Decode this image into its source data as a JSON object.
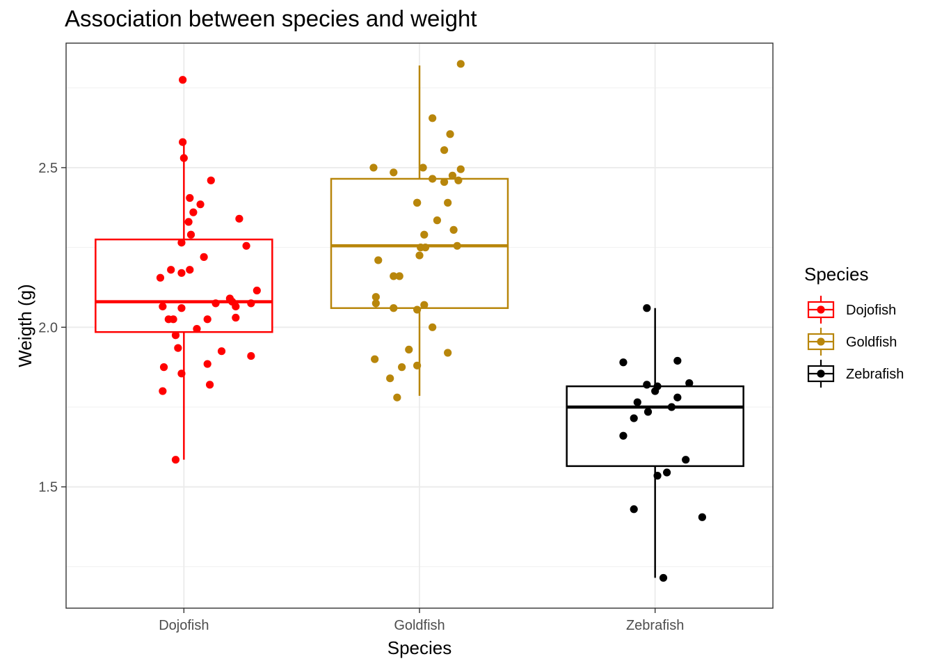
{
  "chart_data": {
    "type": "box",
    "title": "Association between species and weight",
    "xlabel": "Species",
    "ylabel": "Weigth (g)",
    "categories": [
      "Dojofish",
      "Goldfish",
      "Zebrafish"
    ],
    "y_ticks": [
      1.5,
      2.0,
      2.5
    ],
    "y_tick_labels": [
      "1.5",
      "2.0",
      "2.5"
    ],
    "ylim": [
      1.12,
      2.89
    ],
    "grid": true,
    "legend": {
      "title": "Species",
      "position": "right"
    },
    "colors": {
      "Dojofish": "#ff0000",
      "Goldfish": "#b8860b",
      "Zebrafish": "#000000"
    },
    "boxes": [
      {
        "category": "Dojofish",
        "min": 1.585,
        "q1": 1.985,
        "median": 2.08,
        "q3": 2.275,
        "max": 2.58
      },
      {
        "category": "Goldfish",
        "min": 1.785,
        "q1": 2.06,
        "median": 2.255,
        "q3": 2.465,
        "max": 2.82
      },
      {
        "category": "Zebrafish",
        "min": 1.215,
        "q1": 1.565,
        "median": 1.75,
        "q3": 1.815,
        "max": 2.06
      }
    ],
    "series": [
      {
        "name": "Dojofish",
        "points": [
          [
            -0.2,
            2.155
          ],
          [
            -0.18,
            2.065
          ],
          [
            -0.18,
            1.8
          ],
          [
            -0.17,
            1.875
          ],
          [
            -0.13,
            2.025
          ],
          [
            -0.11,
            2.18
          ],
          [
            -0.09,
            2.025
          ],
          [
            -0.07,
            1.975
          ],
          [
            -0.05,
            1.935
          ],
          [
            -0.02,
            1.855
          ],
          [
            -0.02,
            2.265
          ],
          [
            -0.02,
            2.17
          ],
          [
            -0.02,
            2.06
          ],
          [
            -0.01,
            2.775
          ],
          [
            -0.01,
            2.58
          ],
          [
            0.0,
            2.53
          ],
          [
            0.04,
            2.33
          ],
          [
            0.05,
            2.405
          ],
          [
            0.05,
            2.18
          ],
          [
            0.06,
            2.29
          ],
          [
            0.08,
            2.36
          ],
          [
            0.11,
            1.995
          ],
          [
            0.14,
            2.385
          ],
          [
            -0.07,
            1.585
          ],
          [
            0.17,
            2.22
          ],
          [
            0.2,
            2.025
          ],
          [
            0.23,
            2.46
          ],
          [
            0.2,
            1.885
          ],
          [
            0.22,
            1.82
          ],
          [
            0.27,
            2.075
          ],
          [
            0.32,
            1.925
          ],
          [
            0.39,
            2.09
          ],
          [
            0.41,
            2.08
          ],
          [
            0.44,
            2.065
          ],
          [
            0.44,
            2.03
          ],
          [
            0.47,
            2.34
          ],
          [
            0.53,
            2.255
          ],
          [
            0.57,
            2.075
          ],
          [
            0.57,
            1.91
          ],
          [
            0.62,
            2.115
          ]
        ]
      },
      {
        "name": "Goldfish",
        "points": [
          [
            -0.39,
            2.5
          ],
          [
            -0.38,
            1.9
          ],
          [
            -0.37,
            2.095
          ],
          [
            -0.37,
            2.075
          ],
          [
            -0.35,
            2.21
          ],
          [
            -0.25,
            1.84
          ],
          [
            -0.22,
            2.16
          ],
          [
            -0.22,
            2.06
          ],
          [
            -0.22,
            2.485
          ],
          [
            -0.19,
            1.78
          ],
          [
            -0.17,
            2.16
          ],
          [
            -0.15,
            1.875
          ],
          [
            -0.09,
            1.93
          ],
          [
            -0.02,
            2.39
          ],
          [
            -0.02,
            2.055
          ],
          [
            -0.02,
            1.88
          ],
          [
            -0.02,
            2.39
          ],
          [
            0.0,
            2.225
          ],
          [
            0.01,
            2.25
          ],
          [
            0.03,
            2.5
          ],
          [
            0.04,
            2.29
          ],
          [
            0.04,
            2.07
          ],
          [
            0.05,
            2.25
          ],
          [
            0.11,
            2.655
          ],
          [
            0.11,
            2.465
          ],
          [
            0.11,
            2.0
          ],
          [
            0.15,
            2.335
          ],
          [
            0.21,
            2.555
          ],
          [
            0.21,
            2.455
          ],
          [
            0.24,
            2.39
          ],
          [
            0.24,
            1.92
          ],
          [
            0.26,
            2.605
          ],
          [
            0.28,
            2.475
          ],
          [
            0.29,
            2.305
          ],
          [
            0.32,
            2.255
          ],
          [
            0.33,
            2.46
          ],
          [
            0.35,
            2.495
          ],
          [
            0.35,
            2.825
          ]
        ]
      },
      {
        "name": "Zebrafish",
        "points": [
          [
            -0.27,
            1.89
          ],
          [
            -0.27,
            1.66
          ],
          [
            -0.18,
            1.715
          ],
          [
            -0.18,
            1.43
          ],
          [
            -0.15,
            1.765
          ],
          [
            -0.07,
            2.06
          ],
          [
            -0.07,
            1.82
          ],
          [
            -0.06,
            1.735
          ],
          [
            0.0,
            1.8
          ],
          [
            0.02,
            1.535
          ],
          [
            0.02,
            1.815
          ],
          [
            0.07,
            1.215
          ],
          [
            0.1,
            1.545
          ],
          [
            0.14,
            1.75
          ],
          [
            0.19,
            1.895
          ],
          [
            0.19,
            1.78
          ],
          [
            0.26,
            1.585
          ],
          [
            0.29,
            1.825
          ],
          [
            0.4,
            1.405
          ]
        ]
      }
    ]
  }
}
